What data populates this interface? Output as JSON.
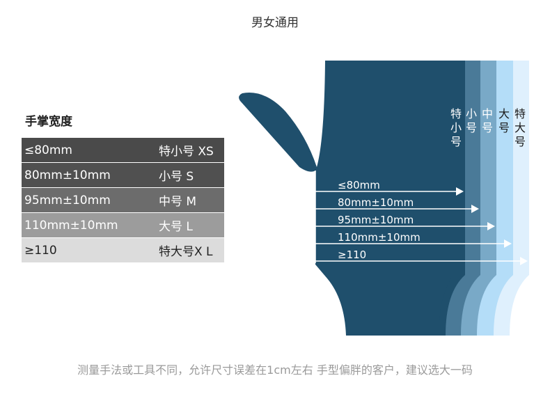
{
  "title": "男女通用",
  "table": {
    "heading": "手掌宽度",
    "rows": [
      {
        "width": "≤80mm",
        "size": "特小号 XS",
        "bg": "#4a4a4a",
        "fg": "#ffffff"
      },
      {
        "width": "80mm±10mm",
        "size": "小号 S",
        "bg": "#505050",
        "fg": "#ffffff"
      },
      {
        "width": "95mm±10mm",
        "size": "中号 M",
        "bg": "#6c6c6c",
        "fg": "#ffffff"
      },
      {
        "width": "110mm±10mm",
        "size": "大号 L",
        "bg": "#9c9c9c",
        "fg": "#ffffff"
      },
      {
        "width": "≥110",
        "size": "特大号X L",
        "bg": "#dcdcdc",
        "fg": "#222222"
      }
    ]
  },
  "hand": {
    "band_labels": [
      "特小号",
      "小号",
      "中号",
      "大号",
      "特大号"
    ],
    "band_colors": [
      "#1f4f6c",
      "#4a7a98",
      "#79a9c7",
      "#b4ddf8",
      "#dff0fd"
    ],
    "arrow_labels": [
      "≤80mm",
      "80mm±10mm",
      "95mm±10mm",
      "110mm±10mm",
      "≥110"
    ]
  },
  "footer": "测量手法或工具不同，允许尺寸误差在1cm左右 手型偏胖的客户，建议选大一码"
}
